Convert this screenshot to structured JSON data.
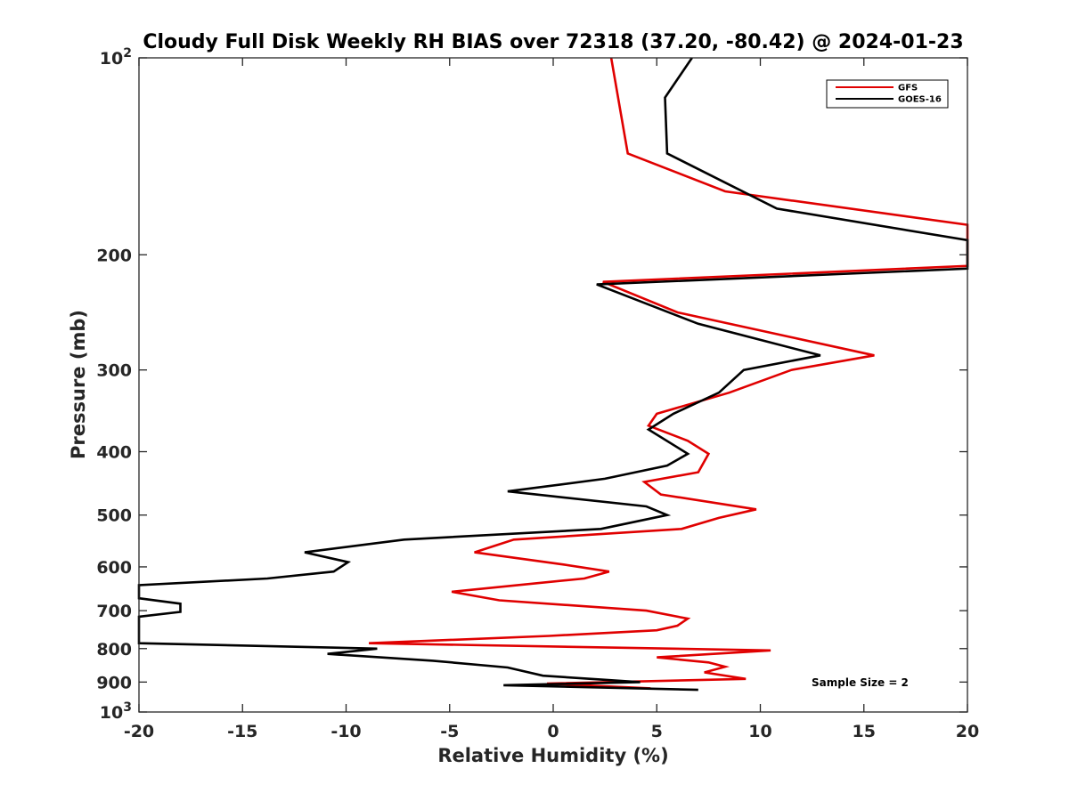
{
  "chart_data": {
    "type": "line",
    "title": "Cloudy Full Disk Weekly RH BIAS over 72318 (37.20, -80.42) @ 2024-01-23",
    "xlabel": "Relative Humidity (%)",
    "ylabel": "Pressure (mb)",
    "xlim": [
      -20,
      20
    ],
    "ylim": [
      100,
      1000
    ],
    "yscale": "log",
    "y_reversed": true,
    "grid": false,
    "legend_position": "top-right",
    "x_ticks": [
      {
        "value": -20,
        "label": "-20"
      },
      {
        "value": -15,
        "label": "-15"
      },
      {
        "value": -10,
        "label": "-10"
      },
      {
        "value": -5,
        "label": "-5"
      },
      {
        "value": 0,
        "label": "0"
      },
      {
        "value": 5,
        "label": "5"
      },
      {
        "value": 10,
        "label": "10"
      },
      {
        "value": 15,
        "label": "15"
      },
      {
        "value": 20,
        "label": "20"
      }
    ],
    "y_ticks": [
      {
        "value": 100,
        "base": "10",
        "exp": "2"
      },
      {
        "value": 200,
        "label": "200"
      },
      {
        "value": 300,
        "label": "300"
      },
      {
        "value": 400,
        "label": "400"
      },
      {
        "value": 500,
        "label": "500"
      },
      {
        "value": 600,
        "label": "600"
      },
      {
        "value": 700,
        "label": "700"
      },
      {
        "value": 800,
        "label": "800"
      },
      {
        "value": 900,
        "label": "900"
      },
      {
        "value": 1000,
        "base": "10",
        "exp": "3"
      }
    ],
    "annotation": "Sample Size = 2",
    "series": [
      {
        "name": "GFS",
        "color": "#e00000",
        "points": [
          [
            2.8,
            100
          ],
          [
            3.6,
            140
          ],
          [
            8.3,
            160
          ],
          [
            20,
            180
          ],
          [
            20,
            208
          ],
          [
            2.4,
            220
          ],
          [
            6.0,
            245
          ],
          [
            15.5,
            285
          ],
          [
            11.5,
            300
          ],
          [
            8.5,
            325
          ],
          [
            5.0,
            350
          ],
          [
            4.6,
            365
          ],
          [
            6.5,
            385
          ],
          [
            7.5,
            403
          ],
          [
            7.0,
            430
          ],
          [
            4.4,
            445
          ],
          [
            5.2,
            465
          ],
          [
            9.8,
            490
          ],
          [
            8.0,
            505
          ],
          [
            6.2,
            525
          ],
          [
            -1.9,
            545
          ],
          [
            -3.8,
            570
          ],
          [
            0.5,
            595
          ],
          [
            2.7,
            610
          ],
          [
            1.5,
            625
          ],
          [
            -4.9,
            655
          ],
          [
            -2.6,
            675
          ],
          [
            4.5,
            700
          ],
          [
            6.5,
            720
          ],
          [
            6.0,
            738
          ],
          [
            5.0,
            750
          ],
          [
            -0.2,
            765
          ],
          [
            -8.9,
            785
          ],
          [
            10.5,
            805
          ],
          [
            5.0,
            825
          ],
          [
            7.5,
            840
          ],
          [
            8.3,
            853
          ],
          [
            7.3,
            870
          ],
          [
            9.3,
            890
          ],
          [
            -0.3,
            905
          ],
          [
            4.7,
            920
          ]
        ]
      },
      {
        "name": "GOES-16",
        "color": "#000000",
        "points": [
          [
            6.7,
            100
          ],
          [
            5.4,
            115
          ],
          [
            5.5,
            140
          ],
          [
            10.8,
            170
          ],
          [
            20,
            190
          ],
          [
            20,
            210
          ],
          [
            2.1,
            222
          ],
          [
            7.0,
            255
          ],
          [
            12.9,
            285
          ],
          [
            9.2,
            300
          ],
          [
            8.0,
            325
          ],
          [
            5.8,
            350
          ],
          [
            4.6,
            370
          ],
          [
            6.5,
            403
          ],
          [
            5.5,
            420
          ],
          [
            2.5,
            440
          ],
          [
            -2.2,
            460
          ],
          [
            4.5,
            485
          ],
          [
            5.5,
            500
          ],
          [
            2.3,
            525
          ],
          [
            -7.2,
            545
          ],
          [
            -12.0,
            570
          ],
          [
            -9.9,
            590
          ],
          [
            -10.6,
            610
          ],
          [
            -13.8,
            625
          ],
          [
            -20,
            640
          ],
          [
            -20,
            670
          ],
          [
            -18.0,
            683
          ],
          [
            -18.0,
            703
          ],
          [
            -20,
            715
          ],
          [
            -20,
            785
          ],
          [
            -8.5,
            800
          ],
          [
            -10.9,
            815
          ],
          [
            -5.8,
            835
          ],
          [
            -2.2,
            855
          ],
          [
            -0.5,
            880
          ],
          [
            4.2,
            900
          ],
          [
            -2.4,
            910
          ],
          [
            7.0,
            925
          ]
        ]
      }
    ]
  }
}
